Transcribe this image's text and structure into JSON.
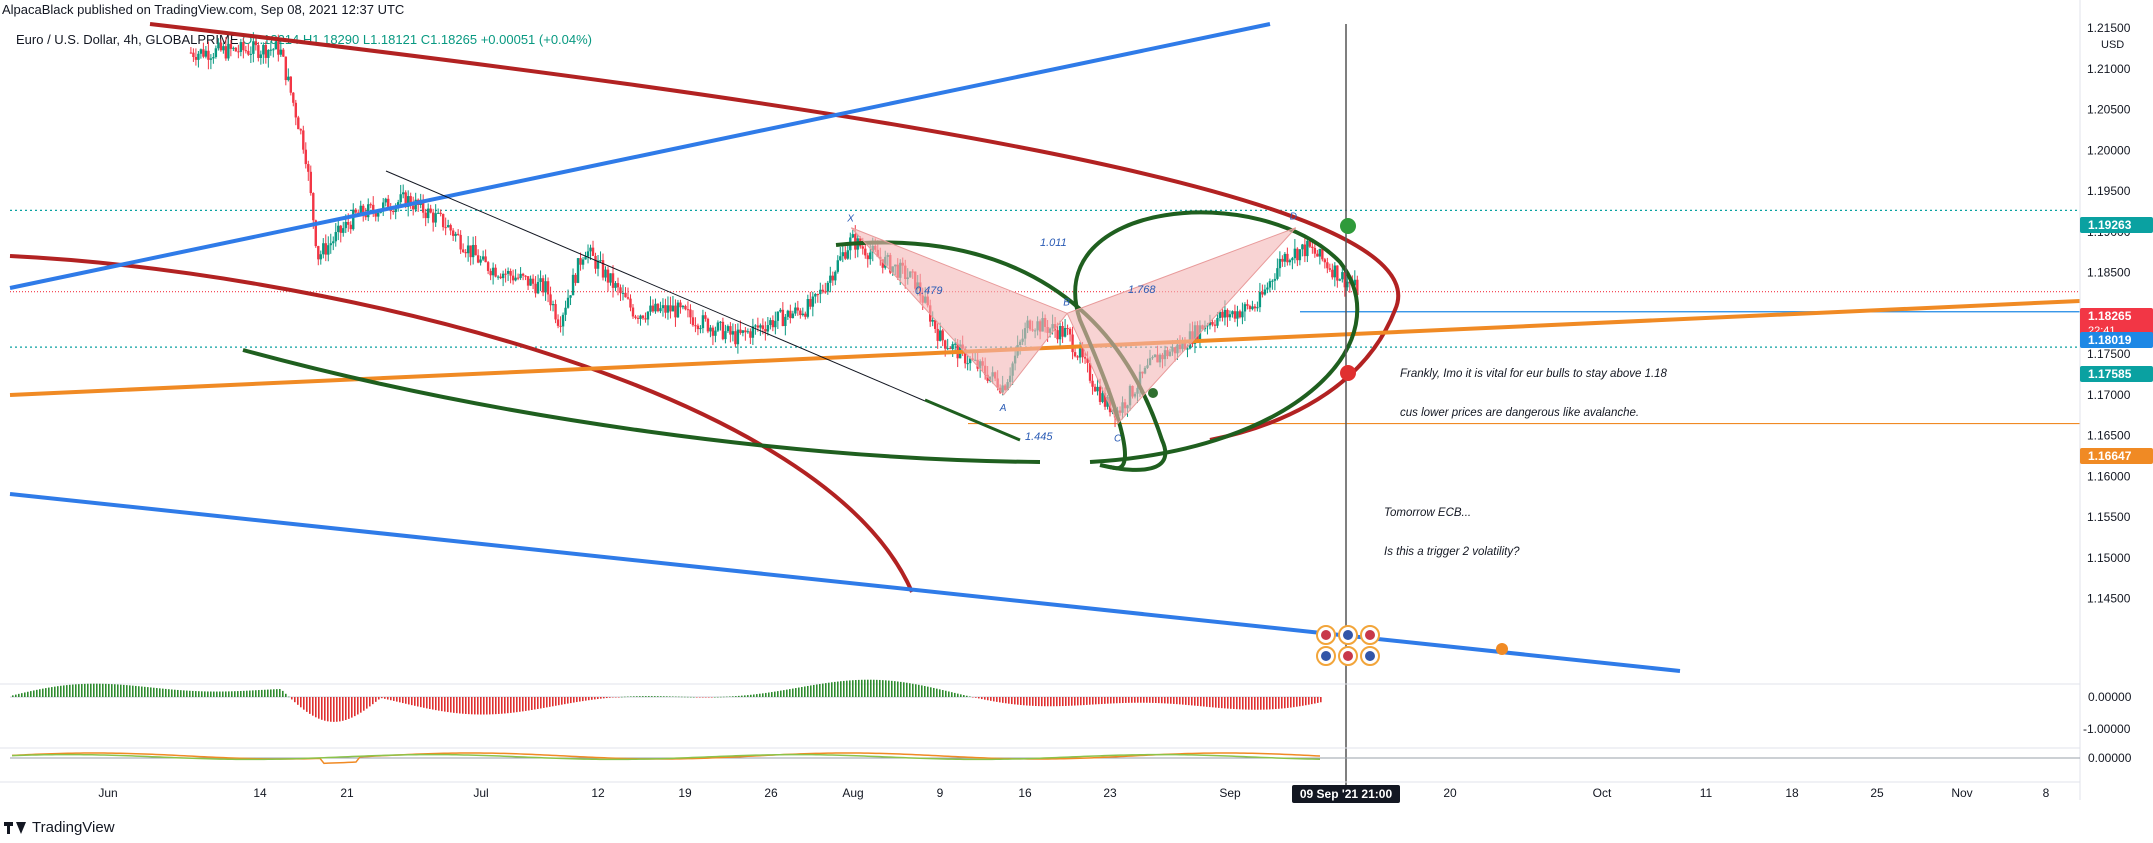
{
  "header": {
    "published": "AlpacaBlack published on TradingView.com, Sep 08, 2021 12:37 UTC",
    "symbol": "Euro / U.S. Dollar, 4h, GLOBALPRIME",
    "ohlc": "O1.18214 H1.18290 L1.18121 C1.18265",
    "change": "+0.00051 (+0.04%)"
  },
  "footer": {
    "brand": "TradingView"
  },
  "annotations": {
    "note_main_1": "Frankly, Imo it is vital for eur bulls to stay above 1.18",
    "note_main_2": "cus lower prices are dangerous like avalanche.",
    "note_ecb_1": "Tomorrow ECB...",
    "note_ecb_2": "Is this a trigger 2 volatility?",
    "pattern_points": [
      "X",
      "A",
      "B",
      "C",
      "D"
    ],
    "ratios": [
      "0.479",
      "1.445",
      "1.768",
      "1.011"
    ]
  },
  "colors": {
    "up": "#089981",
    "down": "#f23645",
    "blue_channel": "#2f7be8",
    "orange_line": "#f08a24",
    "dark_red_arc": "#b22222",
    "green_arc": "#1f5f1f",
    "pattern_fill": "#f4b6b6"
  },
  "chart_data": {
    "type": "candlestick",
    "title": "Euro / U.S. Dollar, 4h, GLOBALPRIME",
    "y_axis": {
      "unit": "USD",
      "ylim": [
        1.135,
        1.2155
      ],
      "ticks": [
        "1.21500",
        "1.21000",
        "1.20500",
        "1.20000",
        "1.19500",
        "1.19000",
        "1.18500",
        "1.17500",
        "1.17000",
        "1.16500",
        "1.16000",
        "1.15500",
        "1.15000",
        "1.14500"
      ]
    },
    "x_axis": {
      "ticks": [
        "Jun",
        "14",
        "21",
        "Jul",
        "12",
        "19",
        "26",
        "Aug",
        "9",
        "16",
        "23",
        "Sep",
        "20",
        "Oct",
        "11",
        "18",
        "25",
        "Nov",
        "8"
      ],
      "crosshair_label": "09 Sep '21  21:00"
    },
    "price_labels": [
      {
        "value": "1.19263",
        "color": "#0aa1a1"
      },
      {
        "value": "1.18265",
        "sub": "22:41",
        "color": "#f23645"
      },
      {
        "value": "1.18019",
        "color": "#1e88e5"
      },
      {
        "value": "1.17585",
        "color": "#0aa1a1"
      },
      {
        "value": "1.16647",
        "color": "#f08a24"
      }
    ],
    "horizontal_levels": [
      1.19263,
      1.18265,
      1.18019,
      1.17585,
      1.16647
    ],
    "close_path": [
      {
        "x": "Jun 8",
        "y": 1.212
      },
      {
        "x": "Jun 15",
        "y": 1.2125
      },
      {
        "x": "Jun 17",
        "y": 1.2
      },
      {
        "x": "Jun 18",
        "y": 1.187
      },
      {
        "x": "Jun 21",
        "y": 1.192
      },
      {
        "x": "Jun 25",
        "y": 1.194
      },
      {
        "x": "Jun 28",
        "y": 1.191
      },
      {
        "x": "Jul 1",
        "y": 1.186
      },
      {
        "x": "Jul 6",
        "y": 1.183
      },
      {
        "x": "Jul 7",
        "y": 1.179
      },
      {
        "x": "Jul 9",
        "y": 1.188
      },
      {
        "x": "Jul 13",
        "y": 1.18
      },
      {
        "x": "Jul 16",
        "y": 1.1805
      },
      {
        "x": "Jul 21",
        "y": 1.177
      },
      {
        "x": "Jul 23",
        "y": 1.1785
      },
      {
        "x": "Jul 27",
        "y": 1.181
      },
      {
        "x": "Jul 30",
        "y": 1.189
      },
      {
        "x": "Aug 4",
        "y": 1.184
      },
      {
        "x": "Aug 6",
        "y": 1.177
      },
      {
        "x": "Aug 11",
        "y": 1.171
      },
      {
        "x": "Aug 13",
        "y": 1.179
      },
      {
        "x": "Aug 16",
        "y": 1.1775
      },
      {
        "x": "Aug 19",
        "y": 1.169
      },
      {
        "x": "Aug 20",
        "y": 1.168
      },
      {
        "x": "Aug 23",
        "y": 1.1745
      },
      {
        "x": "Aug 25",
        "y": 1.176
      },
      {
        "x": "Aug 27",
        "y": 1.179
      },
      {
        "x": "Aug 31",
        "y": 1.181
      },
      {
        "x": "Sep 2",
        "y": 1.187
      },
      {
        "x": "Sep 4",
        "y": 1.188
      },
      {
        "x": "Sep 7",
        "y": 1.184
      },
      {
        "x": "Sep 8",
        "y": 1.1827
      }
    ],
    "harmonic_pattern": [
      {
        "label": "X",
        "x": "Jul 30",
        "y": 1.1905
      },
      {
        "label": "A",
        "x": "Aug 11",
        "y": 1.17
      },
      {
        "label": "B",
        "x": "Aug 16",
        "y": 1.18
      },
      {
        "label": "C",
        "x": "Aug 20",
        "y": 1.1665
      },
      {
        "label": "D",
        "x": "Sep 3",
        "y": 1.1905
      }
    ],
    "lower_panes": [
      {
        "name": "histogram oscillator",
        "zero_label": "0.00000",
        "min_label": "-1.00000"
      },
      {
        "name": "line oscillator",
        "zero_label": "0.00000"
      }
    ]
  }
}
